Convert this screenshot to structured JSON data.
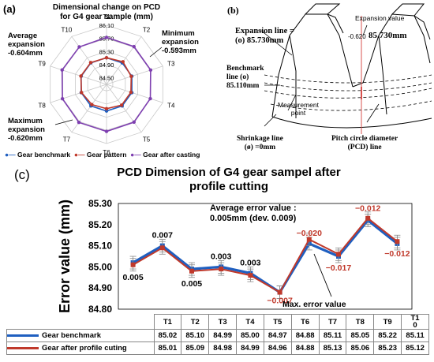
{
  "panel_a": {
    "label": "(a)",
    "title": "Dimensional change on PCD for G4 gear sample (mm)",
    "avg": {
      "l1": "Average",
      "l2": "expansion",
      "l3": "-0.604mm"
    },
    "min": {
      "l1": "Minimum",
      "l2": "expansion",
      "l3": "-0.593mm"
    },
    "max": {
      "l1": "Maximum",
      "l2": "expansion",
      "l3": "-0.620mm"
    },
    "legend": [
      "Gear benchmark",
      "Gear pattern",
      "Gear after casting"
    ]
  },
  "panel_b": {
    "label": "(b)",
    "expansion_value_label": "Expansion value",
    "expansion_value": "-0.620",
    "expansion_line": {
      "l1": "Expansion line =",
      "l2": "(o) 85.730mm"
    },
    "right_value": "85.730mm",
    "benchmark": {
      "l1": "Benchmark",
      "l2": "line (o)",
      "l3": "85.110mm"
    },
    "measurement": {
      "l1": "Measurement",
      "l2": "point"
    },
    "shrinkage": {
      "l1": "Shrinkage line",
      "l2": "(ø) =0mm"
    },
    "pcd": {
      "l1": "Pitch circle diameter",
      "l2": "(PCD) line"
    }
  },
  "panel_c": {
    "label": "(c)",
    "title1": "PCD Dimension of G4 gear sampel after",
    "title2": "profile cutting",
    "avg1": "Average error value :",
    "avg2": "0.005mm (dev. 0.009)",
    "max_label": "Max. error value",
    "table_header": [
      "T1",
      "T2",
      "T3",
      "T4",
      "T5",
      "T6",
      "T7",
      "T8",
      "T9",
      "T1\n0"
    ],
    "row1_label": "Gear benchmark",
    "row2_label": "Gear after profile cuting",
    "row1": [
      "85.02",
      "85.10",
      "84.99",
      "85.00",
      "84.97",
      "84.88",
      "85.11",
      "85.05",
      "85.22",
      "85.11"
    ],
    "row2": [
      "85.01",
      "85.09",
      "84.98",
      "84.99",
      "84.96",
      "84.88",
      "85.13",
      "85.06",
      "85.23",
      "85.12"
    ]
  },
  "chart_data": [
    {
      "type": "radar",
      "title": "Dimensional change on PCD for G4 gear sample (mm)",
      "categories": [
        "T1",
        "T2",
        "T3",
        "T4",
        "T5",
        "T6",
        "T7",
        "T8",
        "T9",
        "T10"
      ],
      "tick_labels": [
        "84.50",
        "84.90",
        "85.30",
        "85.70",
        "86.10"
      ],
      "rlim": [
        84.3,
        86.1
      ],
      "series": [
        {
          "name": "Gear benchmark",
          "color": "#1f5fc0",
          "values": [
            85.11,
            85.11,
            85.11,
            85.11,
            85.11,
            85.11,
            85.11,
            85.11,
            85.11,
            85.11
          ]
        },
        {
          "name": "Gear pattern",
          "color": "#c0392b",
          "values": [
            85.11,
            85.15,
            85.09,
            85.08,
            85.08,
            85.04,
            85.06,
            85.1,
            85.12,
            85.12
          ]
        },
        {
          "name": "Gear after casting",
          "color": "#7e3fb0",
          "values": [
            85.73,
            85.72,
            85.71,
            85.7,
            85.72,
            85.73,
            85.73,
            85.71,
            85.72,
            85.71
          ]
        }
      ],
      "legend_position": "bottom"
    },
    {
      "type": "line",
      "title": "PCD Dimension of G4 gear sampel after profile cutting",
      "ylabel": "Error value (mm)",
      "categories": [
        "T1",
        "T2",
        "T3",
        "T4",
        "T5",
        "T6",
        "T7",
        "T8",
        "T9",
        "T10"
      ],
      "ylim": [
        84.8,
        85.3
      ],
      "yticks": [
        "84.80",
        "84.90",
        "85.00",
        "85.10",
        "85.20",
        "85.30"
      ],
      "series": [
        {
          "name": "Gear benchmark",
          "color": "#1f5fc0",
          "values": [
            85.02,
            85.1,
            84.99,
            85.0,
            84.97,
            84.88,
            85.11,
            85.05,
            85.22,
            85.11
          ]
        },
        {
          "name": "Gear after profile cuting",
          "color": "#c0392b",
          "values": [
            85.01,
            85.09,
            84.98,
            84.99,
            84.96,
            84.88,
            85.13,
            85.06,
            85.23,
            85.12
          ]
        }
      ],
      "point_labels": [
        "0.005",
        "0.007",
        "0.005",
        "0.003",
        "0.003",
        "−0.007",
        "−0.020",
        "−0.017",
        "−0.012",
        "−0.012"
      ],
      "label_colors": [
        "#000",
        "#000",
        "#000",
        "#000",
        "#000",
        "#c0392b",
        "#c0392b",
        "#c0392b",
        "#c0392b",
        "#c0392b"
      ],
      "grid": false,
      "legend_position": "bottom"
    }
  ]
}
